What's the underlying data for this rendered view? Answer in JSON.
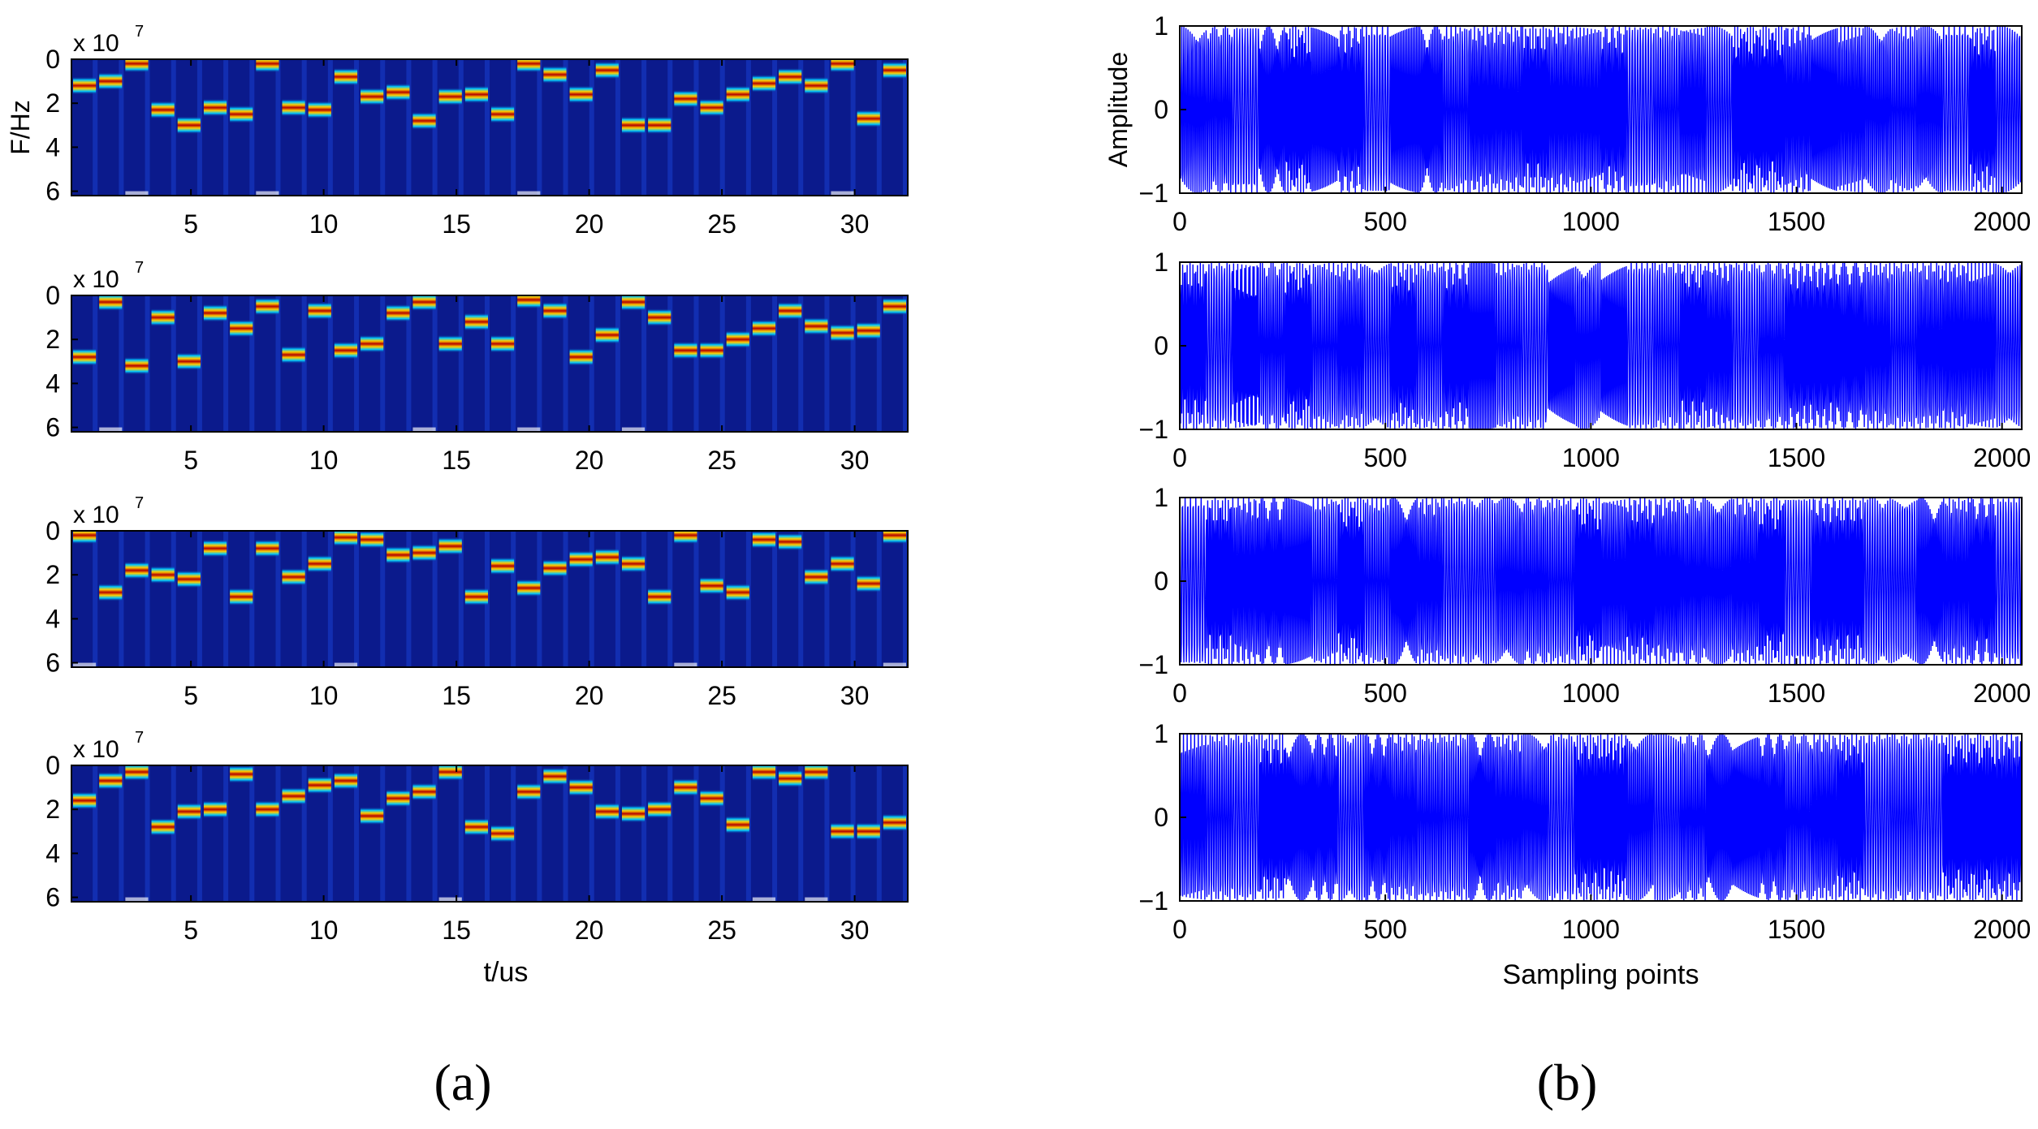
{
  "figure": {
    "caption_a": "(a)",
    "caption_b": "(b)"
  },
  "chart_data": [
    {
      "panel": "a",
      "type": "heatmap",
      "description_type": "spectrogram",
      "ylabel": "F/Hz",
      "xlabel": "t/us",
      "scale_label": "x 10",
      "scale_exponent": "7",
      "xlim": [
        0.5,
        32
      ],
      "ylim": [
        0,
        6.2
      ],
      "xticks": [
        5,
        10,
        15,
        20,
        25,
        30
      ],
      "xtick_labels": [
        "5",
        "10",
        "15",
        "20",
        "25",
        "30"
      ],
      "yticks": [
        0,
        2,
        4,
        6
      ],
      "ytick_labels": [
        "0",
        "2",
        "4",
        "6"
      ],
      "colors": {
        "background": "#0b1a8c",
        "ridge_core": "#b40000",
        "ridge_mid": "#ffcc00",
        "ridge_outer": "#00c8ff"
      },
      "rows": [
        {
          "freqs": [
            1.2,
            1.0,
            0.2,
            2.3,
            3.0,
            2.2,
            2.5,
            0.2,
            2.2,
            2.3,
            0.8,
            1.7,
            1.5,
            2.8,
            1.7,
            1.6,
            2.5,
            0.2,
            0.7,
            1.6,
            0.5,
            3.0,
            3.0,
            1.8,
            2.2,
            1.6,
            1.1,
            0.8,
            1.2,
            0.2,
            2.7,
            0.5
          ]
        },
        {
          "freqs": [
            2.8,
            0.3,
            3.2,
            1.0,
            3.0,
            0.8,
            1.5,
            0.5,
            2.7,
            0.7,
            2.5,
            2.2,
            0.8,
            0.3,
            2.2,
            1.2,
            2.2,
            0.2,
            0.7,
            2.8,
            1.8,
            0.3,
            1.0,
            2.5,
            2.5,
            2.0,
            1.5,
            0.7,
            1.4,
            1.7,
            1.6,
            0.5
          ]
        },
        {
          "freqs": [
            0.2,
            2.8,
            1.8,
            2.0,
            2.2,
            0.8,
            3.0,
            0.8,
            2.1,
            1.5,
            0.3,
            0.4,
            1.1,
            1.0,
            0.7,
            3.0,
            1.6,
            2.6,
            1.7,
            1.3,
            1.2,
            1.5,
            3.0,
            0.2,
            2.5,
            2.8,
            0.4,
            0.5,
            2.1,
            1.5,
            2.4,
            0.2
          ]
        },
        {
          "freqs": [
            1.6,
            0.7,
            0.3,
            2.8,
            2.1,
            2.0,
            0.4,
            2.0,
            1.4,
            0.9,
            0.7,
            2.3,
            1.5,
            1.2,
            0.3,
            2.8,
            3.1,
            1.2,
            0.5,
            1.0,
            2.1,
            2.2,
            2.0,
            1.0,
            1.5,
            2.7,
            0.3,
            0.6,
            0.3,
            3.0,
            3.0,
            2.6
          ]
        }
      ]
    },
    {
      "panel": "b",
      "type": "line",
      "description_type": "waveform",
      "ylabel": "Amplitude",
      "xlabel": "Sampling points",
      "xlim": [
        0,
        2048
      ],
      "ylim": [
        -1,
        1
      ],
      "xticks": [
        0,
        500,
        1000,
        1500,
        2000
      ],
      "xtick_labels": [
        "0",
        "500",
        "1000",
        "1500",
        "2000"
      ],
      "yticks": [
        1,
        0,
        -1
      ],
      "ytick_labels": [
        "1",
        "0",
        "−1"
      ],
      "color": "#0000ff",
      "segment_length": 64,
      "rows": [
        {
          "freqs": [
            1.2,
            1.0,
            0.2,
            2.3,
            3.0,
            2.2,
            2.5,
            0.2,
            2.2,
            2.3,
            0.8,
            1.7,
            1.5,
            2.8,
            1.7,
            1.6,
            2.5,
            0.2,
            0.7,
            1.6,
            0.5,
            3.0,
            3.0,
            1.8,
            2.2,
            1.6,
            1.1,
            0.8,
            1.2,
            0.2,
            2.7,
            0.5
          ]
        },
        {
          "freqs": [
            2.8,
            0.3,
            3.2,
            1.0,
            3.0,
            0.8,
            1.5,
            0.5,
            2.7,
            0.7,
            2.5,
            2.2,
            0.8,
            0.3,
            2.2,
            1.2,
            2.2,
            0.2,
            0.7,
            2.8,
            1.8,
            0.3,
            1.0,
            2.5,
            2.5,
            2.0,
            1.5,
            0.7,
            1.4,
            1.7,
            1.6,
            0.5
          ]
        },
        {
          "freqs": [
            0.2,
            2.8,
            1.8,
            2.0,
            2.2,
            0.8,
            3.0,
            0.8,
            2.1,
            1.5,
            0.3,
            0.4,
            1.1,
            1.0,
            0.7,
            3.0,
            1.6,
            2.6,
            1.7,
            1.3,
            1.2,
            1.5,
            3.0,
            0.2,
            2.5,
            2.8,
            0.4,
            0.5,
            2.1,
            1.5,
            2.4,
            0.2
          ]
        },
        {
          "freqs": [
            1.6,
            0.7,
            0.3,
            2.8,
            2.1,
            2.0,
            0.4,
            2.0,
            1.4,
            0.9,
            0.7,
            2.3,
            1.5,
            1.2,
            0.3,
            2.8,
            3.1,
            1.2,
            0.5,
            1.0,
            2.1,
            2.2,
            2.0,
            1.0,
            1.5,
            2.7,
            0.3,
            0.6,
            0.3,
            3.0,
            3.0,
            2.6
          ]
        }
      ]
    }
  ]
}
